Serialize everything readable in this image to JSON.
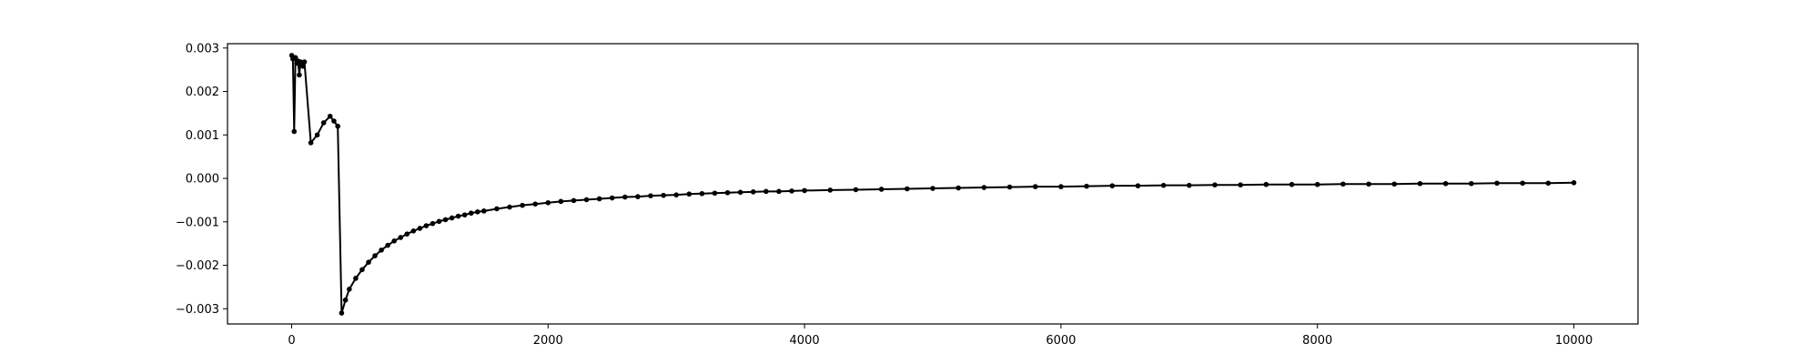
{
  "chart_data": {
    "type": "line",
    "title": "",
    "xlabel": "",
    "ylabel": "",
    "xlim": [
      -500,
      10500
    ],
    "ylim": [
      -0.00335,
      0.0031
    ],
    "x_ticks": [
      0,
      2000,
      4000,
      6000,
      8000,
      10000
    ],
    "x_tick_labels": [
      "0",
      "2000",
      "4000",
      "6000",
      "8000",
      "10000"
    ],
    "y_ticks": [
      0.003,
      0.002,
      0.001,
      0.0,
      -0.001,
      -0.002,
      -0.003
    ],
    "y_tick_labels": [
      "0.003",
      "0.002",
      "0.001",
      "0.000",
      "−0.001",
      "−0.002",
      "−0.003"
    ],
    "grid": false,
    "legend": "none",
    "series": [
      {
        "color": "#000000",
        "marker": "circle",
        "x": [
          1,
          10,
          20,
          30,
          40,
          50,
          60,
          70,
          80,
          90,
          100,
          150,
          200,
          250,
          300,
          330,
          360,
          390,
          420,
          450,
          500,
          550,
          600,
          650,
          700,
          750,
          800,
          850,
          900,
          950,
          1000,
          1050,
          1100,
          1150,
          1200,
          1250,
          1300,
          1350,
          1400,
          1450,
          1500,
          1600,
          1700,
          1800,
          1900,
          2000,
          2100,
          2200,
          2300,
          2400,
          2500,
          2600,
          2700,
          2800,
          2900,
          3000,
          3100,
          3200,
          3300,
          3400,
          3500,
          3600,
          3700,
          3800,
          3900,
          4000,
          4200,
          4400,
          4600,
          4800,
          5000,
          5200,
          5400,
          5600,
          5800,
          6000,
          6200,
          6400,
          6600,
          6800,
          7000,
          7200,
          7400,
          7600,
          7800,
          8000,
          8200,
          8400,
          8600,
          8800,
          9000,
          9200,
          9400,
          9600,
          9800,
          10000
        ],
        "y": [
          0.00283,
          0.00275,
          0.00108,
          0.00278,
          0.00265,
          0.0027,
          0.00238,
          0.00268,
          0.00262,
          0.00258,
          0.00268,
          0.00082,
          0.001,
          0.00128,
          0.00143,
          0.00132,
          0.0012,
          -0.0031,
          -0.0028,
          -0.00255,
          -0.0023,
          -0.0021,
          -0.00193,
          -0.00178,
          -0.00165,
          -0.00154,
          -0.00144,
          -0.00136,
          -0.00128,
          -0.00121,
          -0.00115,
          -0.00109,
          -0.00104,
          -0.00099,
          -0.00095,
          -0.00091,
          -0.00087,
          -0.00084,
          -0.0008,
          -0.00077,
          -0.00075,
          -0.0007,
          -0.00066,
          -0.00062,
          -0.00059,
          -0.00056,
          -0.00053,
          -0.00051,
          -0.00049,
          -0.00047,
          -0.00045,
          -0.00043,
          -0.00042,
          -0.0004,
          -0.00039,
          -0.00038,
          -0.00036,
          -0.00035,
          -0.00034,
          -0.00033,
          -0.00032,
          -0.00031,
          -0.0003,
          -0.0003,
          -0.00029,
          -0.00028,
          -0.00027,
          -0.00026,
          -0.00025,
          -0.00024,
          -0.00023,
          -0.00022,
          -0.00021,
          -0.0002,
          -0.00019,
          -0.00019,
          -0.00018,
          -0.00017,
          -0.00017,
          -0.00016,
          -0.00016,
          -0.00015,
          -0.00015,
          -0.00014,
          -0.00014,
          -0.00014,
          -0.00013,
          -0.00013,
          -0.00013,
          -0.00012,
          -0.00012,
          -0.00012,
          -0.00011,
          -0.00011,
          -0.00011,
          -0.0001
        ]
      }
    ]
  }
}
